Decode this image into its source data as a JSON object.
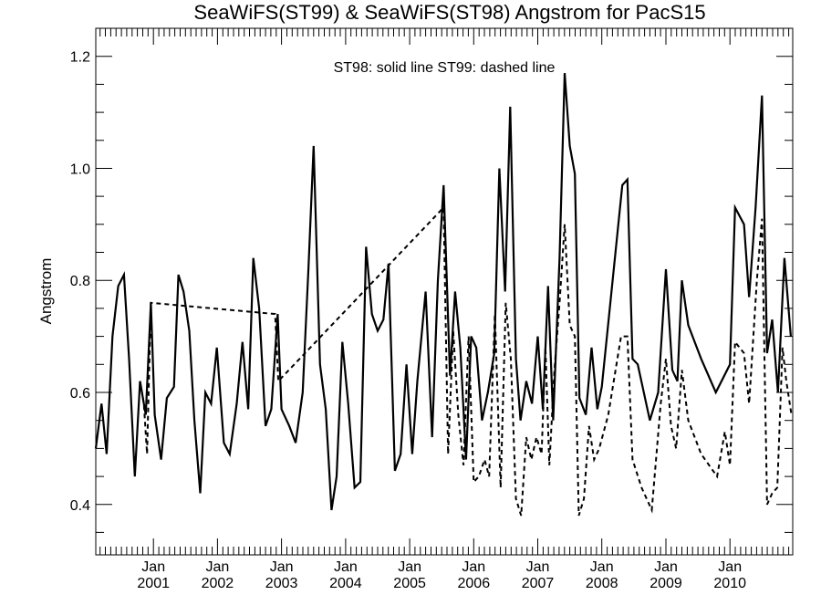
{
  "chart_data": {
    "type": "line",
    "title": "SeaWiFS(ST99) & SeaWiFS(ST98)  Angstrom for PacS15",
    "annotation": "ST98: solid line   ST99: dashed line",
    "xlabel": "",
    "ylabel": "Angstrom",
    "xlim": [
      2000.1,
      2010.98
    ],
    "ylim": [
      0.31,
      1.25
    ],
    "yticks": [
      0.4,
      0.6,
      0.8,
      1.0,
      1.2
    ],
    "ytick_labels": [
      "0.4",
      "0.6",
      "0.8",
      "1.0",
      "1.2"
    ],
    "xticks": [
      {
        "x": 2001.0,
        "month": "Jan",
        "year": "2001"
      },
      {
        "x": 2002.0,
        "month": "Jan",
        "year": "2002"
      },
      {
        "x": 2003.0,
        "month": "Jan",
        "year": "2003"
      },
      {
        "x": 2004.0,
        "month": "Jan",
        "year": "2004"
      },
      {
        "x": 2005.0,
        "month": "Jan",
        "year": "2005"
      },
      {
        "x": 2006.0,
        "month": "Jan",
        "year": "2006"
      },
      {
        "x": 2007.0,
        "month": "Jan",
        "year": "2007"
      },
      {
        "x": 2008.0,
        "month": "Jan",
        "year": "2008"
      },
      {
        "x": 2009.0,
        "month": "Jan",
        "year": "2009"
      },
      {
        "x": 2010.0,
        "month": "Jan",
        "year": "2010"
      }
    ],
    "series": [
      {
        "name": "ST98",
        "style": "solid",
        "points": [
          [
            2000.1,
            0.5
          ],
          [
            2000.19,
            0.58
          ],
          [
            2000.27,
            0.49
          ],
          [
            2000.36,
            0.7
          ],
          [
            2000.45,
            0.79
          ],
          [
            2000.54,
            0.81
          ],
          [
            2000.62,
            0.66
          ],
          [
            2000.71,
            0.45
          ],
          [
            2000.79,
            0.62
          ],
          [
            2000.88,
            0.56
          ],
          [
            2000.96,
            0.76
          ],
          [
            2001.02,
            0.56
          ],
          [
            2001.12,
            0.48
          ],
          [
            2001.21,
            0.59
          ],
          [
            2001.32,
            0.61
          ],
          [
            2001.39,
            0.81
          ],
          [
            2001.47,
            0.78
          ],
          [
            2001.56,
            0.71
          ],
          [
            2001.64,
            0.55
          ],
          [
            2001.73,
            0.42
          ],
          [
            2001.81,
            0.6
          ],
          [
            2001.9,
            0.58
          ],
          [
            2001.99,
            0.68
          ],
          [
            2002.1,
            0.51
          ],
          [
            2002.19,
            0.49
          ],
          [
            2002.3,
            0.58
          ],
          [
            2002.39,
            0.69
          ],
          [
            2002.48,
            0.57
          ],
          [
            2002.56,
            0.84
          ],
          [
            2002.65,
            0.75
          ],
          [
            2002.75,
            0.54
          ],
          [
            2002.84,
            0.57
          ],
          [
            2002.94,
            0.74
          ],
          [
            2003.0,
            0.57
          ],
          [
            2003.12,
            0.54
          ],
          [
            2003.22,
            0.51
          ],
          [
            2003.33,
            0.6
          ],
          [
            2003.42,
            0.82
          ],
          [
            2003.5,
            1.04
          ],
          [
            2003.6,
            0.65
          ],
          [
            2003.69,
            0.57
          ],
          [
            2003.78,
            0.39
          ],
          [
            2003.86,
            0.45
          ],
          [
            2003.95,
            0.69
          ],
          [
            2004.04,
            0.58
          ],
          [
            2004.14,
            0.43
          ],
          [
            2004.23,
            0.44
          ],
          [
            2004.32,
            0.86
          ],
          [
            2004.41,
            0.74
          ],
          [
            2004.5,
            0.71
          ],
          [
            2004.59,
            0.73
          ],
          [
            2004.67,
            0.83
          ],
          [
            2004.77,
            0.46
          ],
          [
            2004.86,
            0.49
          ],
          [
            2004.95,
            0.65
          ],
          [
            2005.04,
            0.49
          ],
          [
            2005.12,
            0.62
          ],
          [
            2005.25,
            0.78
          ],
          [
            2005.35,
            0.52
          ],
          [
            2005.44,
            0.8
          ],
          [
            2005.53,
            0.97
          ],
          [
            2005.63,
            0.63
          ],
          [
            2005.71,
            0.78
          ],
          [
            2005.79,
            0.68
          ],
          [
            2005.88,
            0.48
          ],
          [
            2005.96,
            0.7
          ],
          [
            2006.04,
            0.68
          ],
          [
            2006.13,
            0.55
          ],
          [
            2006.22,
            0.6
          ],
          [
            2006.32,
            0.67
          ],
          [
            2006.4,
            1.0
          ],
          [
            2006.49,
            0.78
          ],
          [
            2006.57,
            1.11
          ],
          [
            2006.66,
            0.66
          ],
          [
            2006.73,
            0.55
          ],
          [
            2006.82,
            0.62
          ],
          [
            2006.91,
            0.58
          ],
          [
            2007.0,
            0.7
          ],
          [
            2007.08,
            0.57
          ],
          [
            2007.16,
            0.79
          ],
          [
            2007.24,
            0.55
          ],
          [
            2007.34,
            0.84
          ],
          [
            2007.42,
            1.17
          ],
          [
            2007.5,
            1.04
          ],
          [
            2007.58,
            0.99
          ],
          [
            2007.65,
            0.59
          ],
          [
            2007.75,
            0.56
          ],
          [
            2007.84,
            0.68
          ],
          [
            2007.93,
            0.57
          ],
          [
            2008.0,
            0.61
          ],
          [
            2008.32,
            0.97
          ],
          [
            2008.4,
            0.98
          ],
          [
            2008.48,
            0.66
          ],
          [
            2008.56,
            0.65
          ],
          [
            2008.75,
            0.55
          ],
          [
            2008.88,
            0.6
          ],
          [
            2009.0,
            0.82
          ],
          [
            2009.1,
            0.64
          ],
          [
            2009.18,
            0.62
          ],
          [
            2009.25,
            0.8
          ],
          [
            2009.35,
            0.72
          ],
          [
            2009.55,
            0.66
          ],
          [
            2009.78,
            0.6
          ],
          [
            2010.0,
            0.65
          ],
          [
            2010.08,
            0.93
          ],
          [
            2010.22,
            0.9
          ],
          [
            2010.3,
            0.77
          ],
          [
            2010.4,
            0.93
          ],
          [
            2010.5,
            1.13
          ],
          [
            2010.58,
            0.67
          ],
          [
            2010.66,
            0.73
          ],
          [
            2010.75,
            0.6
          ],
          [
            2010.85,
            0.84
          ],
          [
            2010.95,
            0.7
          ]
        ]
      },
      {
        "name": "ST99",
        "style": "dashed",
        "points": [
          [
            2000.79,
            0.62
          ],
          [
            2000.85,
            0.58
          ],
          [
            2000.9,
            0.49
          ],
          [
            2000.96,
            0.76
          ],
          [
            2002.9,
            0.74
          ],
          [
            2002.95,
            0.62
          ],
          [
            2005.53,
            0.93
          ],
          [
            2005.6,
            0.49
          ],
          [
            2005.68,
            0.71
          ],
          [
            2005.76,
            0.56
          ],
          [
            2005.84,
            0.47
          ],
          [
            2005.92,
            0.7
          ],
          [
            2006.0,
            0.44
          ],
          [
            2006.08,
            0.45
          ],
          [
            2006.17,
            0.48
          ],
          [
            2006.24,
            0.45
          ],
          [
            2006.33,
            0.74
          ],
          [
            2006.42,
            0.43
          ],
          [
            2006.5,
            0.76
          ],
          [
            2006.58,
            0.66
          ],
          [
            2006.66,
            0.41
          ],
          [
            2006.74,
            0.38
          ],
          [
            2006.82,
            0.52
          ],
          [
            2006.9,
            0.48
          ],
          [
            2006.98,
            0.52
          ],
          [
            2007.06,
            0.49
          ],
          [
            2007.12,
            0.68
          ],
          [
            2007.18,
            0.47
          ],
          [
            2007.26,
            0.64
          ],
          [
            2007.34,
            0.76
          ],
          [
            2007.42,
            0.9
          ],
          [
            2007.5,
            0.72
          ],
          [
            2007.58,
            0.7
          ],
          [
            2007.64,
            0.38
          ],
          [
            2007.72,
            0.41
          ],
          [
            2007.8,
            0.54
          ],
          [
            2007.88,
            0.48
          ],
          [
            2007.96,
            0.5
          ],
          [
            2008.1,
            0.56
          ],
          [
            2008.3,
            0.7
          ],
          [
            2008.4,
            0.7
          ],
          [
            2008.48,
            0.48
          ],
          [
            2008.62,
            0.43
          ],
          [
            2008.78,
            0.39
          ],
          [
            2008.92,
            0.58
          ],
          [
            2009.0,
            0.66
          ],
          [
            2009.08,
            0.54
          ],
          [
            2009.16,
            0.5
          ],
          [
            2009.25,
            0.64
          ],
          [
            2009.35,
            0.55
          ],
          [
            2009.55,
            0.49
          ],
          [
            2009.8,
            0.45
          ],
          [
            2009.92,
            0.53
          ],
          [
            2010.0,
            0.47
          ],
          [
            2010.08,
            0.69
          ],
          [
            2010.22,
            0.67
          ],
          [
            2010.3,
            0.58
          ],
          [
            2010.42,
            0.8
          ],
          [
            2010.5,
            0.91
          ],
          [
            2010.58,
            0.4
          ],
          [
            2010.66,
            0.42
          ],
          [
            2010.74,
            0.43
          ],
          [
            2010.82,
            0.68
          ],
          [
            2010.88,
            0.62
          ],
          [
            2010.96,
            0.56
          ]
        ]
      }
    ]
  }
}
